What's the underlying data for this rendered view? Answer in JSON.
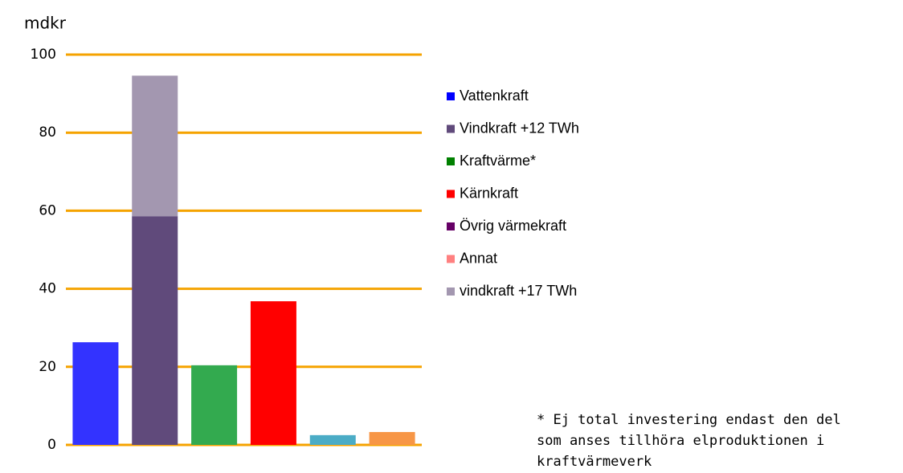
{
  "chart_data": {
    "type": "bar",
    "stacked": true,
    "ylabel": "mdkr",
    "categories": [
      null,
      null,
      null,
      null,
      null,
      null
    ],
    "series": [
      {
        "name": "Vattenkraft",
        "color": "#3333ff",
        "legend_color": "#0000ff",
        "values": [
          26.3,
          null,
          null,
          null,
          null,
          null
        ]
      },
      {
        "name": "Vindkraft +12 TWh",
        "color": "#604a7b",
        "legend_color": "#604a7b",
        "values": [
          null,
          58.6,
          null,
          null,
          null,
          null
        ]
      },
      {
        "name": "Kraftvärme*",
        "color": "#33aa4f",
        "legend_color": "#008000",
        "values": [
          null,
          null,
          20.4,
          null,
          null,
          null
        ]
      },
      {
        "name": "Kärnkraft",
        "color": "#ff0000",
        "legend_color": "#ff0000",
        "values": [
          null,
          null,
          null,
          36.8,
          null,
          null
        ]
      },
      {
        "name": "Övrig värmekraft",
        "color": "#4bacc6",
        "legend_color": "#660066",
        "values": [
          null,
          null,
          null,
          null,
          2.5,
          null
        ]
      },
      {
        "name": "Annat",
        "color": "#f79646",
        "legend_color": "#ff8080",
        "values": [
          null,
          null,
          null,
          null,
          null,
          3.3
        ]
      },
      {
        "name": "vindkraft +17 TWh",
        "color": "#a397b0",
        "legend_color": "#a397b0",
        "values": [
          null,
          36.0,
          null,
          null,
          null,
          null
        ]
      }
    ],
    "ylim": [
      0,
      100
    ],
    "yticks": [
      0,
      20,
      40,
      60,
      80,
      100
    ],
    "grid": true,
    "grid_color": "#f5a300",
    "legend": "right",
    "annotation": [
      "* Ej total investering endast den del",
      "som anses tillhöra elproduktionen i",
      "kraftvärmeverk"
    ]
  }
}
